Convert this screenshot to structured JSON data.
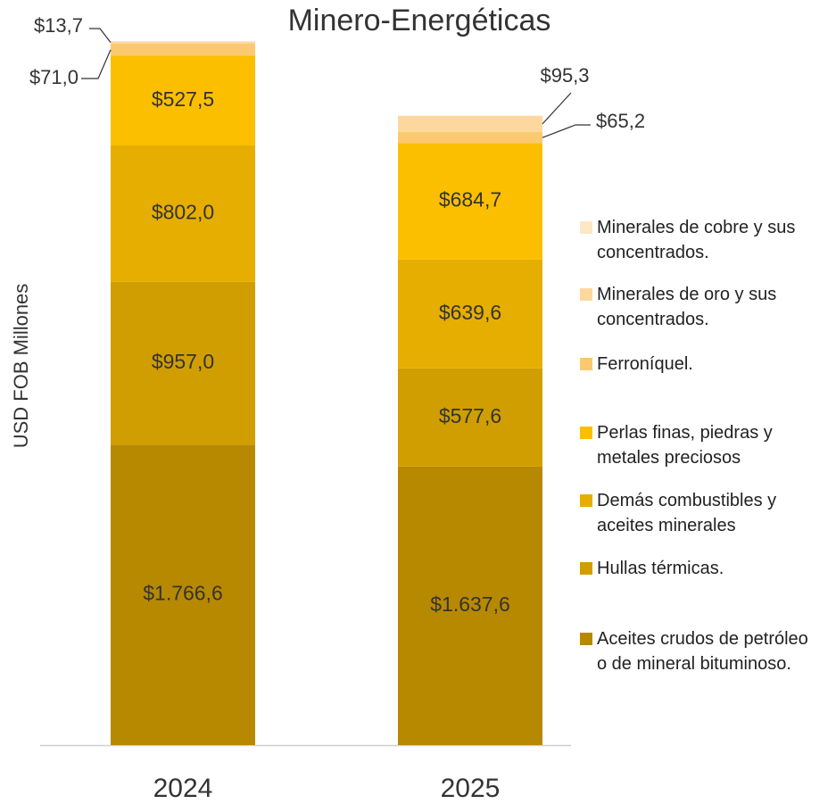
{
  "chart_data": {
    "type": "stacked_bar",
    "title": "Minero-Energéticas",
    "ylabel": "USD FOB Millones",
    "categories": [
      "2024",
      "2025"
    ],
    "ylim": [
      0,
      4150
    ],
    "series": [
      {
        "name": "Aceites crudos de petróleo o de mineral bituminoso.",
        "color": "#b78900",
        "values": [
          1766.6,
          1637.6
        ],
        "value_labels": [
          "$1.766,6",
          "$1.637,6"
        ]
      },
      {
        "name": "Hullas térmicas.",
        "color": "#d09e00",
        "values": [
          957.0,
          577.6
        ],
        "value_labels": [
          "$957,0",
          "$577,6"
        ]
      },
      {
        "name": "Demás combustibles y aceites minerales",
        "color": "#e6ae00",
        "values": [
          802.0,
          639.6
        ],
        "value_labels": [
          "$802,0",
          "$639,6"
        ]
      },
      {
        "name": "Perlas finas, piedras y metales preciosos",
        "color": "#fcbf00",
        "values": [
          527.5,
          684.7
        ],
        "value_labels": [
          "$527,5",
          "$684,7"
        ]
      },
      {
        "name": "Ferroníquel.",
        "color": "#fbc970",
        "values": [
          71.0,
          65.2
        ],
        "value_labels": [
          "$71,0",
          "$65,2"
        ]
      },
      {
        "name": "Minerales de oro y sus concentrados.",
        "color": "#fdd89e",
        "values": [
          13.7,
          95.3
        ],
        "value_labels": [
          "$13,7",
          "$95,3"
        ]
      },
      {
        "name": "Minerales de cobre y sus concentrados.",
        "color": "#fde7c6",
        "values": [
          null,
          null
        ],
        "value_labels": [
          null,
          null
        ]
      }
    ]
  }
}
